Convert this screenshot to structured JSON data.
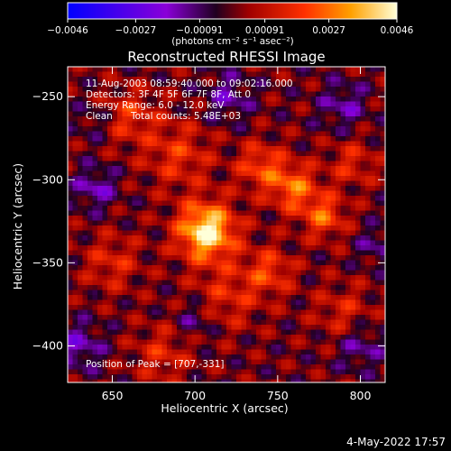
{
  "chart_data": {
    "type": "heatmap",
    "title": "Reconstructed RHESSI Image",
    "xlabel": "Heliocentric X (arcsec)",
    "ylabel": "Heliocentric Y (arcsec)",
    "xlim": [
      623,
      815
    ],
    "ylim": [
      -422,
      -232
    ],
    "x_ticks": [
      {
        "value": 650,
        "label": "650"
      },
      {
        "value": 700,
        "label": "700"
      },
      {
        "value": 750,
        "label": "750"
      },
      {
        "value": 800,
        "label": "800"
      }
    ],
    "y_ticks": [
      {
        "value": -250,
        "label": "−250"
      },
      {
        "value": -300,
        "label": "−300"
      },
      {
        "value": -350,
        "label": "−350"
      },
      {
        "value": -400,
        "label": "−400"
      }
    ],
    "colorbar": {
      "min": -0.0046,
      "max": 0.0046,
      "ticks": [
        {
          "value": -0.0046,
          "label": "−0.0046"
        },
        {
          "value": -0.0027,
          "label": "−0.0027"
        },
        {
          "value": -0.00091,
          "label": "−0.00091"
        },
        {
          "value": 0.00091,
          "label": "0.00091"
        },
        {
          "value": 0.0027,
          "label": "0.0027"
        },
        {
          "value": 0.0046,
          "label": "0.0046"
        }
      ],
      "units": "(photons cm⁻² s⁻¹ asec⁻²)"
    },
    "annotations": {
      "time_range": "11-Aug-2003 08:59:40.000 to 09:02:16.000",
      "detectors": "Detectors: 3F 4F 5F 6F 7F 8F, Att 0",
      "energy_range": "Energy Range: 6.0 - 12.0 keV",
      "algorithm": "Clean",
      "total_counts": "Total counts: 5.48E+03",
      "peak_position": "Position of Peak = [707,-331]"
    },
    "peak": {
      "x": 707,
      "y": -331
    },
    "grid": false
  },
  "colors": {
    "background": "#000000",
    "foreground": "#ffffff",
    "colormap_stops": [
      "#0000ff",
      "#8a00d8",
      "#000000",
      "#c00000",
      "#ff4000",
      "#ffb000",
      "#ffffff"
    ]
  },
  "footer": {
    "date": "4-May-2022 17:57"
  }
}
